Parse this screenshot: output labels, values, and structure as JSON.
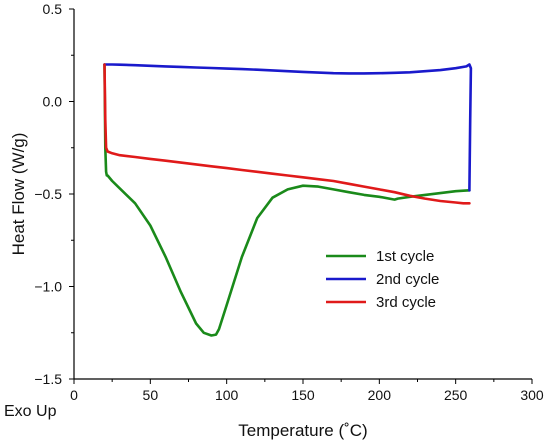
{
  "chart_data": {
    "type": "line",
    "title": "",
    "xlabel": "Temperature (˚C)",
    "ylabel": "Heat Flow (W/g)",
    "annotation": "Exo Up",
    "xlim": [
      0,
      300
    ],
    "ylim": [
      -1.5,
      0.5
    ],
    "x_ticks": [
      0,
      50,
      100,
      150,
      200,
      250,
      300
    ],
    "y_ticks": [
      0.5,
      0.0,
      -0.5,
      -1.0,
      -1.5
    ],
    "y_tick_labels": [
      "0.5",
      "0.0",
      "−0.5",
      "−1.0",
      "−1.5"
    ],
    "grid": false,
    "legend_position": "lower-right",
    "series": [
      {
        "name": "1st cycle",
        "color": "#1a8a1a",
        "x": [
          20,
          20.5,
          21,
          21.5,
          22,
          25,
          30,
          40,
          50,
          60,
          70,
          80,
          85,
          90,
          93,
          95,
          100,
          110,
          120,
          130,
          140,
          150,
          160,
          170,
          180,
          190,
          200,
          210,
          212,
          220,
          230,
          240,
          250,
          255,
          259
        ],
        "y": [
          0.2,
          -0.25,
          -0.38,
          -0.4,
          -0.4,
          -0.43,
          -0.47,
          -0.55,
          -0.67,
          -0.84,
          -1.03,
          -1.2,
          -1.25,
          -1.265,
          -1.26,
          -1.23,
          -1.1,
          -0.84,
          -0.63,
          -0.52,
          -0.475,
          -0.455,
          -0.46,
          -0.475,
          -0.49,
          -0.505,
          -0.515,
          -0.53,
          -0.525,
          -0.515,
          -0.505,
          -0.495,
          -0.485,
          -0.482,
          -0.48
        ]
      },
      {
        "name": "2nd cycle",
        "color": "#1a1acc",
        "x": [
          259,
          259.5,
          260,
          259,
          257,
          250,
          240,
          230,
          220,
          210,
          200,
          190,
          180,
          170,
          160,
          150,
          140,
          130,
          120,
          110,
          100,
          90,
          80,
          70,
          60,
          50,
          40,
          30,
          25,
          21,
          20
        ],
        "y": [
          -0.48,
          -0.1,
          0.18,
          0.2,
          0.19,
          0.18,
          0.17,
          0.164,
          0.158,
          0.155,
          0.153,
          0.152,
          0.152,
          0.153,
          0.156,
          0.16,
          0.164,
          0.168,
          0.172,
          0.175,
          0.178,
          0.181,
          0.184,
          0.187,
          0.19,
          0.193,
          0.196,
          0.199,
          0.2,
          0.2,
          0.2
        ]
      },
      {
        "name": "3rd cycle",
        "color": "#e01a1a",
        "x": [
          20,
          20.5,
          21,
          22,
          25,
          30,
          40,
          50,
          60,
          70,
          80,
          90,
          100,
          110,
          120,
          130,
          140,
          150,
          160,
          170,
          180,
          190,
          200,
          210,
          220,
          230,
          240,
          250,
          255,
          259
        ],
        "y": [
          0.2,
          -0.1,
          -0.25,
          -0.27,
          -0.28,
          -0.29,
          -0.3,
          -0.31,
          -0.32,
          -0.33,
          -0.34,
          -0.35,
          -0.36,
          -0.37,
          -0.38,
          -0.39,
          -0.4,
          -0.41,
          -0.42,
          -0.43,
          -0.445,
          -0.46,
          -0.475,
          -0.49,
          -0.51,
          -0.525,
          -0.538,
          -0.546,
          -0.55,
          -0.55
        ]
      }
    ]
  }
}
